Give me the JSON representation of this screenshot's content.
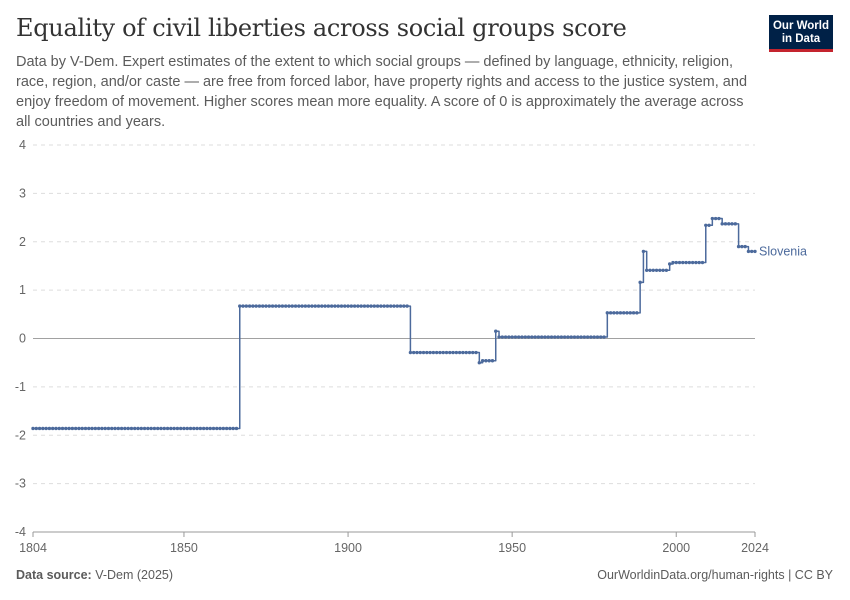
{
  "header": {
    "title": "Equality of civil liberties across social groups score",
    "subtitle": "Data by V-Dem. Expert estimates of the extent to which social groups — defined by language, ethnicity, religion, race, region, and/or caste — are free from forced labor, have property rights and access to the justice system, and enjoy freedom of movement. Higher scores mean more equality. A score of 0 is approximately the average across all countries and years."
  },
  "logo": {
    "line1": "Our World",
    "line2": "in Data"
  },
  "footer": {
    "source_label": "Data source:",
    "source_value": "V-Dem (2025)",
    "right": "OurWorldinData.org/human-rights | CC BY"
  },
  "colors": {
    "series": "#4c6a9c",
    "grid": "#dddddd",
    "zero": "#a1a1a1",
    "text": "#666666"
  },
  "chart_data": {
    "type": "line",
    "xlim": [
      1804,
      2024
    ],
    "ylim": [
      -4,
      4
    ],
    "yticks": [
      -4,
      -3,
      -2,
      -1,
      0,
      1,
      2,
      3,
      4
    ],
    "xticks": [
      1804,
      1850,
      1900,
      1950,
      2000,
      2024
    ],
    "grid": true,
    "series": [
      {
        "name": "Slovenia",
        "segments": [
          {
            "from": 1804,
            "to": 1866,
            "y": -1.86
          },
          {
            "from": 1867,
            "to": 1918,
            "y": 0.67
          },
          {
            "from": 1919,
            "to": 1939,
            "y": -0.29
          },
          {
            "from": 1940,
            "to": 1940,
            "y": -0.5
          },
          {
            "from": 1941,
            "to": 1944,
            "y": -0.46
          },
          {
            "from": 1945,
            "to": 1945,
            "y": 0.15
          },
          {
            "from": 1946,
            "to": 1978,
            "y": 0.03
          },
          {
            "from": 1979,
            "to": 1988,
            "y": 0.53
          },
          {
            "from": 1989,
            "to": 1989,
            "y": 1.16
          },
          {
            "from": 1990,
            "to": 1990,
            "y": 1.8
          },
          {
            "from": 1991,
            "to": 1997,
            "y": 1.41
          },
          {
            "from": 1998,
            "to": 1998,
            "y": 1.54
          },
          {
            "from": 1999,
            "to": 2008,
            "y": 1.57
          },
          {
            "from": 2009,
            "to": 2010,
            "y": 2.34
          },
          {
            "from": 2011,
            "to": 2013,
            "y": 2.48
          },
          {
            "from": 2014,
            "to": 2018,
            "y": 2.37
          },
          {
            "from": 2019,
            "to": 2021,
            "y": 1.9
          },
          {
            "from": 2022,
            "to": 2024,
            "y": 1.8
          }
        ]
      }
    ]
  }
}
